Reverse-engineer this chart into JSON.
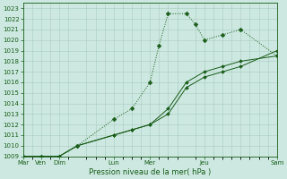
{
  "bg_color": "#cce8e0",
  "grid_color": "#aaccc0",
  "line_color": "#1a5c1a",
  "title": "Pression niveau de la mer( hPa )",
  "ylim": [
    1009,
    1023.5
  ],
  "yticks": [
    1009,
    1010,
    1011,
    1012,
    1013,
    1014,
    1015,
    1016,
    1017,
    1018,
    1019,
    1020,
    1021,
    1022,
    1023
  ],
  "xlabel_fontsize": 6.0,
  "tick_fontsize": 5.0,
  "series1_x": [
    0,
    0.5,
    1.0,
    1.5,
    2.5,
    3.0,
    3.5,
    3.75,
    4.0,
    4.5,
    4.75,
    5.0,
    5.5,
    6.0,
    7.0
  ],
  "series1_y": [
    1009,
    1009,
    1009,
    1010,
    1012.5,
    1013.5,
    1016.0,
    1019.5,
    1022.5,
    1022.5,
    1021.5,
    1020.0,
    1020.5,
    1021.0,
    1018.5
  ],
  "series2_x": [
    0,
    0.5,
    1.0,
    1.5,
    2.5,
    3.0,
    3.5,
    4.0,
    4.5,
    5.0,
    5.5,
    6.0,
    7.0
  ],
  "series2_y": [
    1009,
    1009,
    1009,
    1010,
    1011.0,
    1011.5,
    1012.0,
    1013.0,
    1015.5,
    1016.5,
    1017.0,
    1017.5,
    1019.0
  ],
  "series3_x": [
    0,
    0.5,
    1.0,
    1.5,
    2.5,
    3.0,
    3.5,
    4.0,
    4.5,
    5.0,
    5.5,
    6.0,
    7.0
  ],
  "series3_y": [
    1009,
    1009,
    1009,
    1010,
    1011.0,
    1011.5,
    1012.0,
    1013.5,
    1016.0,
    1017.0,
    1017.5,
    1018.0,
    1018.5
  ],
  "xtick_positions": [
    0,
    0.5,
    1.0,
    2.5,
    3.5,
    5.0,
    7.0
  ],
  "xtick_labels": [
    "Mar",
    "Ven",
    "Dim",
    "Lun",
    "Mer",
    "Jeu",
    "Sam"
  ],
  "xlim": [
    0,
    7.0
  ]
}
